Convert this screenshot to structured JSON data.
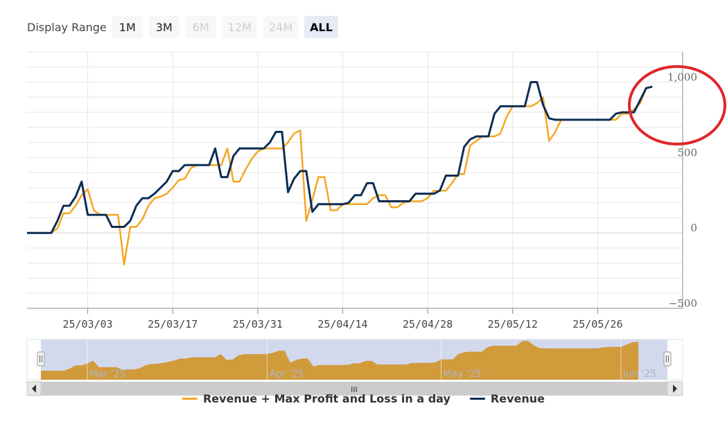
{
  "range_selector": {
    "label": "Display Range",
    "buttons": [
      {
        "label": "1M",
        "state": "enabled"
      },
      {
        "label": "3M",
        "state": "enabled"
      },
      {
        "label": "6M",
        "state": "disabled"
      },
      {
        "label": "12M",
        "state": "disabled"
      },
      {
        "label": "24M",
        "state": "disabled"
      },
      {
        "label": "ALL",
        "state": "active"
      }
    ]
  },
  "colors": {
    "revenue": "#0d2c54",
    "revenue_max": "#f5a623",
    "navigator_fill": "#d19a3a",
    "navigator_mask": "#d2d9ed",
    "grid": "#e6e6e6",
    "highlight_circle": "#e0262b"
  },
  "chart_data": {
    "type": "line",
    "x_start": "2025-02-21",
    "x_end": "2025-06-09",
    "ylim": [
      -500,
      1000
    ],
    "y_ticks": [
      {
        "value": 1000,
        "label": "1,000"
      },
      {
        "value": 500,
        "label": "500"
      },
      {
        "value": 0,
        "label": "0"
      },
      {
        "value": -500,
        "label": "−500"
      }
    ],
    "x_ticks": [
      {
        "date": "2025-03-03",
        "label": "25/03/03"
      },
      {
        "date": "2025-03-17",
        "label": "25/03/17"
      },
      {
        "date": "2025-03-31",
        "label": "25/03/31"
      },
      {
        "date": "2025-04-14",
        "label": "25/04/14"
      },
      {
        "date": "2025-04-28",
        "label": "25/04/28"
      },
      {
        "date": "2025-05-12",
        "label": "25/05/12"
      },
      {
        "date": "2025-05-26",
        "label": "25/05/26"
      }
    ],
    "navigator_ticks": [
      {
        "date": "2025-03-01",
        "label": "Mar '25"
      },
      {
        "date": "2025-04-01",
        "label": "Apr '25"
      },
      {
        "date": "2025-05-01",
        "label": "May '25"
      },
      {
        "date": "2025-06-01",
        "label": "Jun '25"
      }
    ],
    "grid": true,
    "legend_position": "bottom-center",
    "series": [
      {
        "name": "Revenue + Max Profit and Loss in a day",
        "data": [
          [
            "2025-02-21",
            0
          ],
          [
            "2025-02-25",
            0
          ],
          [
            "2025-02-26",
            30
          ],
          [
            "2025-02-27",
            130
          ],
          [
            "2025-02-28",
            130
          ],
          [
            "2025-03-01",
            180
          ],
          [
            "2025-03-02",
            250
          ],
          [
            "2025-03-03",
            290
          ],
          [
            "2025-03-04",
            150
          ],
          [
            "2025-03-05",
            120
          ],
          [
            "2025-03-06",
            120
          ],
          [
            "2025-03-07",
            120
          ],
          [
            "2025-03-08",
            120
          ],
          [
            "2025-03-09",
            -210
          ],
          [
            "2025-03-10",
            40
          ],
          [
            "2025-03-11",
            40
          ],
          [
            "2025-03-12",
            90
          ],
          [
            "2025-03-13",
            180
          ],
          [
            "2025-03-14",
            230
          ],
          [
            "2025-03-15",
            240
          ],
          [
            "2025-03-16",
            260
          ],
          [
            "2025-03-17",
            300
          ],
          [
            "2025-03-18",
            350
          ],
          [
            "2025-03-19",
            360
          ],
          [
            "2025-03-20",
            430
          ],
          [
            "2025-03-21",
            450
          ],
          [
            "2025-03-22",
            450
          ],
          [
            "2025-03-23",
            450
          ],
          [
            "2025-03-24",
            450
          ],
          [
            "2025-03-25",
            450
          ],
          [
            "2025-03-26",
            560
          ],
          [
            "2025-03-27",
            340
          ],
          [
            "2025-03-28",
            340
          ],
          [
            "2025-03-29",
            420
          ],
          [
            "2025-03-30",
            490
          ],
          [
            "2025-03-31",
            540
          ],
          [
            "2025-04-01",
            560
          ],
          [
            "2025-04-02",
            560
          ],
          [
            "2025-04-03",
            560
          ],
          [
            "2025-04-04",
            560
          ],
          [
            "2025-04-05",
            600
          ],
          [
            "2025-04-06",
            660
          ],
          [
            "2025-04-07",
            680
          ],
          [
            "2025-04-08",
            80
          ],
          [
            "2025-04-09",
            220
          ],
          [
            "2025-04-10",
            370
          ],
          [
            "2025-04-11",
            370
          ],
          [
            "2025-04-12",
            150
          ],
          [
            "2025-04-13",
            150
          ],
          [
            "2025-04-14",
            190
          ],
          [
            "2025-04-15",
            190
          ],
          [
            "2025-04-16",
            190
          ],
          [
            "2025-04-17",
            190
          ],
          [
            "2025-04-18",
            190
          ],
          [
            "2025-04-19",
            230
          ],
          [
            "2025-04-20",
            250
          ],
          [
            "2025-04-21",
            250
          ],
          [
            "2025-04-22",
            170
          ],
          [
            "2025-04-23",
            170
          ],
          [
            "2025-04-24",
            200
          ],
          [
            "2025-04-25",
            210
          ],
          [
            "2025-04-26",
            210
          ],
          [
            "2025-04-27",
            210
          ],
          [
            "2025-04-28",
            230
          ],
          [
            "2025-04-29",
            280
          ],
          [
            "2025-04-30",
            280
          ],
          [
            "2025-05-01",
            280
          ],
          [
            "2025-05-02",
            330
          ],
          [
            "2025-05-03",
            390
          ],
          [
            "2025-05-04",
            390
          ],
          [
            "2025-05-05",
            580
          ],
          [
            "2025-05-06",
            610
          ],
          [
            "2025-05-07",
            640
          ],
          [
            "2025-05-08",
            640
          ],
          [
            "2025-05-09",
            640
          ],
          [
            "2025-05-10",
            660
          ],
          [
            "2025-05-11",
            770
          ],
          [
            "2025-05-12",
            840
          ],
          [
            "2025-05-13",
            840
          ],
          [
            "2025-05-14",
            840
          ],
          [
            "2025-05-15",
            840
          ],
          [
            "2025-05-16",
            860
          ],
          [
            "2025-05-17",
            900
          ],
          [
            "2025-05-18",
            610
          ],
          [
            "2025-05-19",
            670
          ],
          [
            "2025-05-20",
            750
          ],
          [
            "2025-05-21",
            750
          ],
          [
            "2025-05-22",
            750
          ],
          [
            "2025-05-23",
            750
          ],
          [
            "2025-05-24",
            750
          ],
          [
            "2025-05-25",
            750
          ],
          [
            "2025-05-26",
            750
          ],
          [
            "2025-05-27",
            750
          ],
          [
            "2025-05-28",
            750
          ],
          [
            "2025-05-29",
            750
          ],
          [
            "2025-05-30",
            790
          ],
          [
            "2025-05-31",
            790
          ],
          [
            "2025-06-01",
            820
          ],
          [
            "2025-06-02",
            860
          ],
          [
            "2025-06-03",
            960
          ],
          [
            "2025-06-04",
            970
          ]
        ]
      },
      {
        "name": "Revenue",
        "data": [
          [
            "2025-02-21",
            0
          ],
          [
            "2025-02-25",
            0
          ],
          [
            "2025-02-26",
            80
          ],
          [
            "2025-02-27",
            180
          ],
          [
            "2025-02-28",
            180
          ],
          [
            "2025-03-01",
            240
          ],
          [
            "2025-03-02",
            340
          ],
          [
            "2025-03-03",
            120
          ],
          [
            "2025-03-04",
            120
          ],
          [
            "2025-03-05",
            120
          ],
          [
            "2025-03-06",
            120
          ],
          [
            "2025-03-07",
            40
          ],
          [
            "2025-03-08",
            40
          ],
          [
            "2025-03-09",
            40
          ],
          [
            "2025-03-10",
            80
          ],
          [
            "2025-03-11",
            180
          ],
          [
            "2025-03-12",
            230
          ],
          [
            "2025-03-13",
            230
          ],
          [
            "2025-03-14",
            260
          ],
          [
            "2025-03-15",
            300
          ],
          [
            "2025-03-16",
            340
          ],
          [
            "2025-03-17",
            410
          ],
          [
            "2025-03-18",
            410
          ],
          [
            "2025-03-19",
            450
          ],
          [
            "2025-03-20",
            450
          ],
          [
            "2025-03-21",
            450
          ],
          [
            "2025-03-22",
            450
          ],
          [
            "2025-03-23",
            450
          ],
          [
            "2025-03-24",
            560
          ],
          [
            "2025-03-25",
            370
          ],
          [
            "2025-03-26",
            370
          ],
          [
            "2025-03-27",
            510
          ],
          [
            "2025-03-28",
            560
          ],
          [
            "2025-03-29",
            560
          ],
          [
            "2025-03-30",
            560
          ],
          [
            "2025-03-31",
            560
          ],
          [
            "2025-04-01",
            560
          ],
          [
            "2025-04-02",
            600
          ],
          [
            "2025-04-03",
            670
          ],
          [
            "2025-04-04",
            670
          ],
          [
            "2025-04-05",
            270
          ],
          [
            "2025-04-06",
            360
          ],
          [
            "2025-04-07",
            410
          ],
          [
            "2025-04-08",
            410
          ],
          [
            "2025-04-09",
            140
          ],
          [
            "2025-04-10",
            190
          ],
          [
            "2025-04-11",
            190
          ],
          [
            "2025-04-12",
            190
          ],
          [
            "2025-04-13",
            190
          ],
          [
            "2025-04-14",
            190
          ],
          [
            "2025-04-15",
            200
          ],
          [
            "2025-04-16",
            250
          ],
          [
            "2025-04-17",
            250
          ],
          [
            "2025-04-18",
            330
          ],
          [
            "2025-04-19",
            330
          ],
          [
            "2025-04-20",
            210
          ],
          [
            "2025-04-21",
            210
          ],
          [
            "2025-04-22",
            210
          ],
          [
            "2025-04-23",
            210
          ],
          [
            "2025-04-24",
            210
          ],
          [
            "2025-04-25",
            210
          ],
          [
            "2025-04-26",
            260
          ],
          [
            "2025-04-27",
            260
          ],
          [
            "2025-04-28",
            260
          ],
          [
            "2025-04-29",
            260
          ],
          [
            "2025-04-30",
            280
          ],
          [
            "2025-05-01",
            380
          ],
          [
            "2025-05-02",
            380
          ],
          [
            "2025-05-03",
            380
          ],
          [
            "2025-05-04",
            570
          ],
          [
            "2025-05-05",
            620
          ],
          [
            "2025-05-06",
            640
          ],
          [
            "2025-05-07",
            640
          ],
          [
            "2025-05-08",
            640
          ],
          [
            "2025-05-09",
            790
          ],
          [
            "2025-05-10",
            840
          ],
          [
            "2025-05-11",
            840
          ],
          [
            "2025-05-12",
            840
          ],
          [
            "2025-05-13",
            840
          ],
          [
            "2025-05-14",
            840
          ],
          [
            "2025-05-15",
            1000
          ],
          [
            "2025-05-16",
            1000
          ],
          [
            "2025-05-17",
            850
          ],
          [
            "2025-05-18",
            760
          ],
          [
            "2025-05-19",
            750
          ],
          [
            "2025-05-20",
            750
          ],
          [
            "2025-05-21",
            750
          ],
          [
            "2025-05-22",
            750
          ],
          [
            "2025-05-23",
            750
          ],
          [
            "2025-05-24",
            750
          ],
          [
            "2025-05-25",
            750
          ],
          [
            "2025-05-26",
            750
          ],
          [
            "2025-05-27",
            750
          ],
          [
            "2025-05-28",
            750
          ],
          [
            "2025-05-29",
            790
          ],
          [
            "2025-05-30",
            800
          ],
          [
            "2025-05-31",
            800
          ],
          [
            "2025-06-01",
            800
          ],
          [
            "2025-06-02",
            880
          ],
          [
            "2025-06-03",
            960
          ],
          [
            "2025-06-04",
            970
          ]
        ]
      }
    ]
  },
  "scrollbar": {
    "grip": "III"
  }
}
